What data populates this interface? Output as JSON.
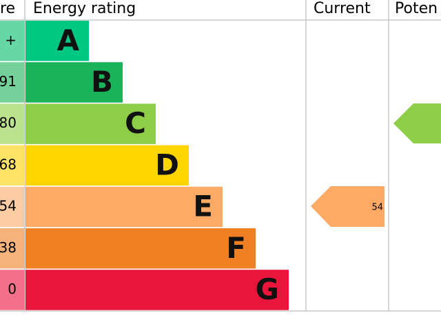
{
  "header": {
    "score": "re",
    "rating": "Energy rating",
    "current": "Current",
    "potential": "Poten"
  },
  "bands": [
    {
      "score": "+",
      "letter": "A"
    },
    {
      "score": "91",
      "letter": "B"
    },
    {
      "score": "80",
      "letter": "C"
    },
    {
      "score": "68",
      "letter": "D"
    },
    {
      "score": "54",
      "letter": "E"
    },
    {
      "score": "38",
      "letter": "F"
    },
    {
      "score": "0",
      "letter": "G"
    }
  ],
  "current": "54"
}
